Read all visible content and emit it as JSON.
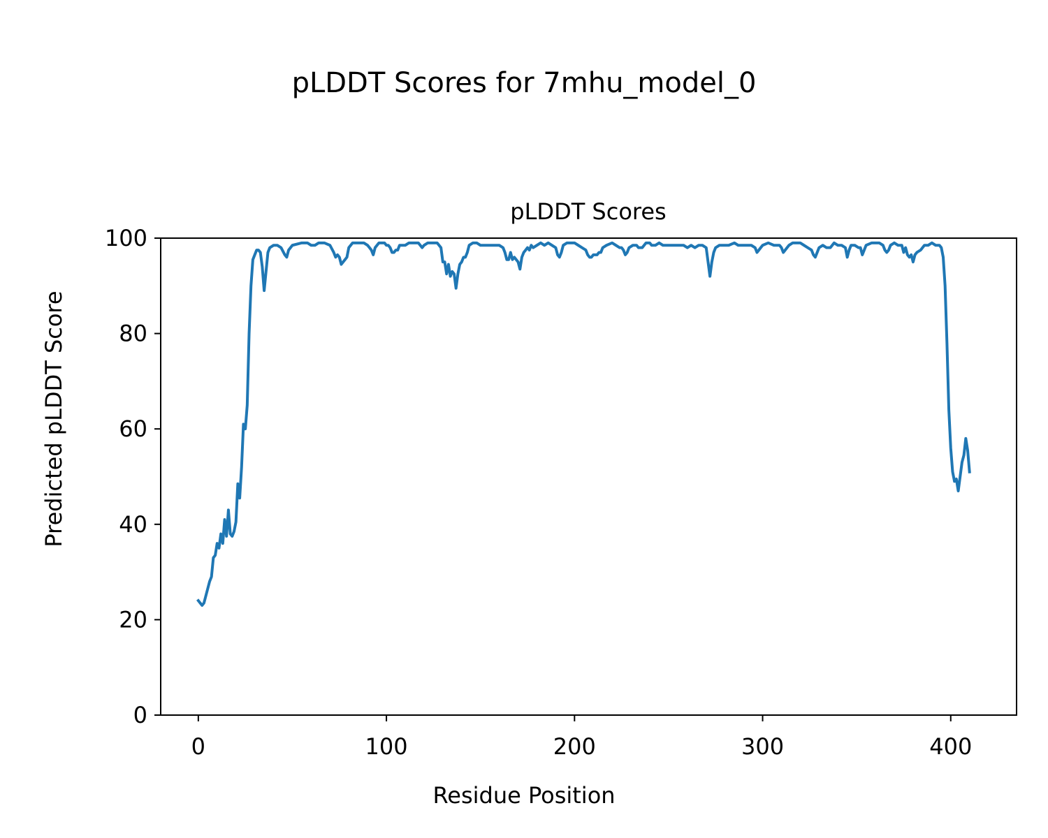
{
  "figure": {
    "suptitle": "pLDDT Scores for 7mhu_model_0"
  },
  "colors": {
    "line": "#1f77b4",
    "axes": "#000000",
    "background": "#ffffff"
  },
  "chart_data": {
    "type": "line",
    "title": "pLDDT Scores",
    "xlabel": "Residue Position",
    "ylabel": "Predicted pLDDT Score",
    "xlim": [
      -20,
      435
    ],
    "ylim": [
      0,
      100
    ],
    "xticks": [
      0,
      100,
      200,
      300,
      400
    ],
    "yticks": [
      0,
      20,
      40,
      60,
      80,
      100
    ],
    "grid": false,
    "legend": "none",
    "series": [
      {
        "points": [
          [
            0,
            24
          ],
          [
            1,
            23.5
          ],
          [
            2,
            23
          ],
          [
            3,
            23.5
          ],
          [
            4,
            25
          ],
          [
            5,
            26.5
          ],
          [
            6,
            28
          ],
          [
            7,
            29
          ],
          [
            8,
            33
          ],
          [
            9,
            33.5
          ],
          [
            10,
            36
          ],
          [
            11,
            35
          ],
          [
            12,
            38
          ],
          [
            13,
            36
          ],
          [
            14,
            41
          ],
          [
            15,
            37.5
          ],
          [
            16,
            43
          ],
          [
            17,
            38
          ],
          [
            18,
            37.5
          ],
          [
            19,
            38.5
          ],
          [
            20,
            40.5
          ],
          [
            21,
            48.5
          ],
          [
            22,
            45.5
          ],
          [
            23,
            52
          ],
          [
            24,
            61
          ],
          [
            25,
            60
          ],
          [
            26,
            65
          ],
          [
            27,
            80
          ],
          [
            28,
            90
          ],
          [
            29,
            95.5
          ],
          [
            30,
            96.5
          ],
          [
            31,
            97.5
          ],
          [
            32,
            97.5
          ],
          [
            33,
            97
          ],
          [
            34,
            94
          ],
          [
            35,
            89
          ],
          [
            36,
            93
          ],
          [
            37,
            97
          ],
          [
            38,
            98
          ],
          [
            40,
            98.5
          ],
          [
            42,
            98.5
          ],
          [
            44,
            98
          ],
          [
            46,
            96.5
          ],
          [
            47,
            96
          ],
          [
            48,
            97.5
          ],
          [
            50,
            98.5
          ],
          [
            55,
            99
          ],
          [
            58,
            99
          ],
          [
            60,
            98.5
          ],
          [
            62,
            98.5
          ],
          [
            64,
            99
          ],
          [
            67,
            99
          ],
          [
            70,
            98.5
          ],
          [
            72,
            97
          ],
          [
            73,
            96
          ],
          [
            74,
            96.5
          ],
          [
            75,
            96
          ],
          [
            76,
            94.5
          ],
          [
            77,
            95
          ],
          [
            78,
            95.5
          ],
          [
            79,
            96
          ],
          [
            80,
            98
          ],
          [
            82,
            99
          ],
          [
            85,
            99
          ],
          [
            88,
            99
          ],
          [
            90,
            98.5
          ],
          [
            91,
            98
          ],
          [
            92,
            97.5
          ],
          [
            93,
            96.5
          ],
          [
            94,
            98
          ],
          [
            96,
            99
          ],
          [
            99,
            99
          ],
          [
            100,
            98.5
          ],
          [
            101,
            98.5
          ],
          [
            102,
            98
          ],
          [
            103,
            97
          ],
          [
            104,
            97
          ],
          [
            105,
            97.5
          ],
          [
            106,
            97.5
          ],
          [
            107,
            98.5
          ],
          [
            110,
            98.5
          ],
          [
            112,
            99
          ],
          [
            115,
            99
          ],
          [
            117,
            99
          ],
          [
            118,
            98.5
          ],
          [
            119,
            98
          ],
          [
            120,
            98.5
          ],
          [
            122,
            99
          ],
          [
            125,
            99
          ],
          [
            127,
            99
          ],
          [
            128,
            98.5
          ],
          [
            129,
            98
          ],
          [
            130,
            95
          ],
          [
            131,
            95
          ],
          [
            132,
            92.5
          ],
          [
            133,
            94.5
          ],
          [
            134,
            92
          ],
          [
            135,
            93
          ],
          [
            136,
            92.5
          ],
          [
            137,
            89.5
          ],
          [
            138,
            92.5
          ],
          [
            139,
            94.5
          ],
          [
            140,
            95
          ],
          [
            141,
            96
          ],
          [
            142,
            96
          ],
          [
            143,
            97
          ],
          [
            144,
            98.5
          ],
          [
            146,
            99
          ],
          [
            148,
            99
          ],
          [
            150,
            98.5
          ],
          [
            155,
            98.5
          ],
          [
            160,
            98.5
          ],
          [
            162,
            98
          ],
          [
            163,
            97
          ],
          [
            164,
            95.5
          ],
          [
            165,
            95.5
          ],
          [
            166,
            97
          ],
          [
            167,
            95.5
          ],
          [
            168,
            96
          ],
          [
            169,
            95.5
          ],
          [
            170,
            95
          ],
          [
            171,
            93.5
          ],
          [
            172,
            96
          ],
          [
            173,
            97
          ],
          [
            174,
            97.5
          ],
          [
            175,
            98
          ],
          [
            176,
            97.5
          ],
          [
            177,
            98.5
          ],
          [
            178,
            98
          ],
          [
            180,
            98.5
          ],
          [
            182,
            99
          ],
          [
            184,
            98.5
          ],
          [
            186,
            99
          ],
          [
            188,
            98.5
          ],
          [
            190,
            98
          ],
          [
            191,
            96.5
          ],
          [
            192,
            96
          ],
          [
            193,
            97
          ],
          [
            194,
            98.5
          ],
          [
            196,
            99
          ],
          [
            200,
            99
          ],
          [
            202,
            98.5
          ],
          [
            204,
            98
          ],
          [
            206,
            97.5
          ],
          [
            207,
            96.5
          ],
          [
            208,
            96
          ],
          [
            209,
            96
          ],
          [
            210,
            96.5
          ],
          [
            211,
            96.5
          ],
          [
            212,
            96.5
          ],
          [
            213,
            97
          ],
          [
            214,
            97
          ],
          [
            215,
            98
          ],
          [
            217,
            98.5
          ],
          [
            220,
            99
          ],
          [
            222,
            98.5
          ],
          [
            224,
            98
          ],
          [
            225,
            98
          ],
          [
            226,
            97.5
          ],
          [
            227,
            96.5
          ],
          [
            228,
            97
          ],
          [
            229,
            98
          ],
          [
            231,
            98.5
          ],
          [
            233,
            98.5
          ],
          [
            234,
            98
          ],
          [
            236,
            98
          ],
          [
            238,
            99
          ],
          [
            240,
            99
          ],
          [
            241,
            98.5
          ],
          [
            243,
            98.5
          ],
          [
            245,
            99
          ],
          [
            247,
            98.5
          ],
          [
            250,
            98.5
          ],
          [
            252,
            98.5
          ],
          [
            254,
            98.5
          ],
          [
            256,
            98.5
          ],
          [
            258,
            98.5
          ],
          [
            260,
            98
          ],
          [
            262,
            98.5
          ],
          [
            264,
            98
          ],
          [
            266,
            98.5
          ],
          [
            268,
            98.5
          ],
          [
            270,
            98
          ],
          [
            271,
            95
          ],
          [
            272,
            92
          ],
          [
            273,
            95
          ],
          [
            274,
            97
          ],
          [
            275,
            98
          ],
          [
            277,
            98.5
          ],
          [
            280,
            98.5
          ],
          [
            282,
            98.5
          ],
          [
            285,
            99
          ],
          [
            287,
            98.5
          ],
          [
            290,
            98.5
          ],
          [
            292,
            98.5
          ],
          [
            294,
            98.5
          ],
          [
            296,
            98
          ],
          [
            297,
            97
          ],
          [
            298,
            97.5
          ],
          [
            299,
            98
          ],
          [
            300,
            98.5
          ],
          [
            303,
            99
          ],
          [
            306,
            98.5
          ],
          [
            309,
            98.5
          ],
          [
            310,
            98
          ],
          [
            311,
            97
          ],
          [
            312,
            97.5
          ],
          [
            313,
            98
          ],
          [
            314,
            98.5
          ],
          [
            316,
            99
          ],
          [
            320,
            99
          ],
          [
            322,
            98.5
          ],
          [
            324,
            98
          ],
          [
            326,
            97.5
          ],
          [
            327,
            96.5
          ],
          [
            328,
            96
          ],
          [
            329,
            97
          ],
          [
            330,
            98
          ],
          [
            332,
            98.5
          ],
          [
            334,
            98
          ],
          [
            336,
            98
          ],
          [
            338,
            99
          ],
          [
            340,
            98.5
          ],
          [
            342,
            98.5
          ],
          [
            344,
            98
          ],
          [
            345,
            96
          ],
          [
            346,
            97.5
          ],
          [
            347,
            98.5
          ],
          [
            349,
            98.5
          ],
          [
            351,
            98
          ],
          [
            352,
            98
          ],
          [
            353,
            96.5
          ],
          [
            354,
            97.5
          ],
          [
            355,
            98.5
          ],
          [
            358,
            99
          ],
          [
            362,
            99
          ],
          [
            364,
            98.5
          ],
          [
            365,
            97.5
          ],
          [
            366,
            97
          ],
          [
            367,
            97.5
          ],
          [
            368,
            98.5
          ],
          [
            370,
            99
          ],
          [
            372,
            98.5
          ],
          [
            374,
            98.5
          ],
          [
            375,
            97
          ],
          [
            376,
            98
          ],
          [
            377,
            96.5
          ],
          [
            378,
            96
          ],
          [
            379,
            96.5
          ],
          [
            380,
            95
          ],
          [
            381,
            96.5
          ],
          [
            382,
            97
          ],
          [
            384,
            97.5
          ],
          [
            386,
            98.5
          ],
          [
            388,
            98.5
          ],
          [
            390,
            99
          ],
          [
            392,
            98.5
          ],
          [
            394,
            98.5
          ],
          [
            395,
            98
          ],
          [
            396,
            96
          ],
          [
            397,
            90
          ],
          [
            398,
            78
          ],
          [
            399,
            64
          ],
          [
            400,
            56
          ],
          [
            401,
            51
          ],
          [
            402,
            49
          ],
          [
            403,
            49.5
          ],
          [
            404,
            47
          ],
          [
            405,
            50
          ],
          [
            406,
            53
          ],
          [
            407,
            54.5
          ],
          [
            408,
            58
          ],
          [
            409,
            55.5
          ],
          [
            410,
            51
          ]
        ]
      }
    ]
  }
}
